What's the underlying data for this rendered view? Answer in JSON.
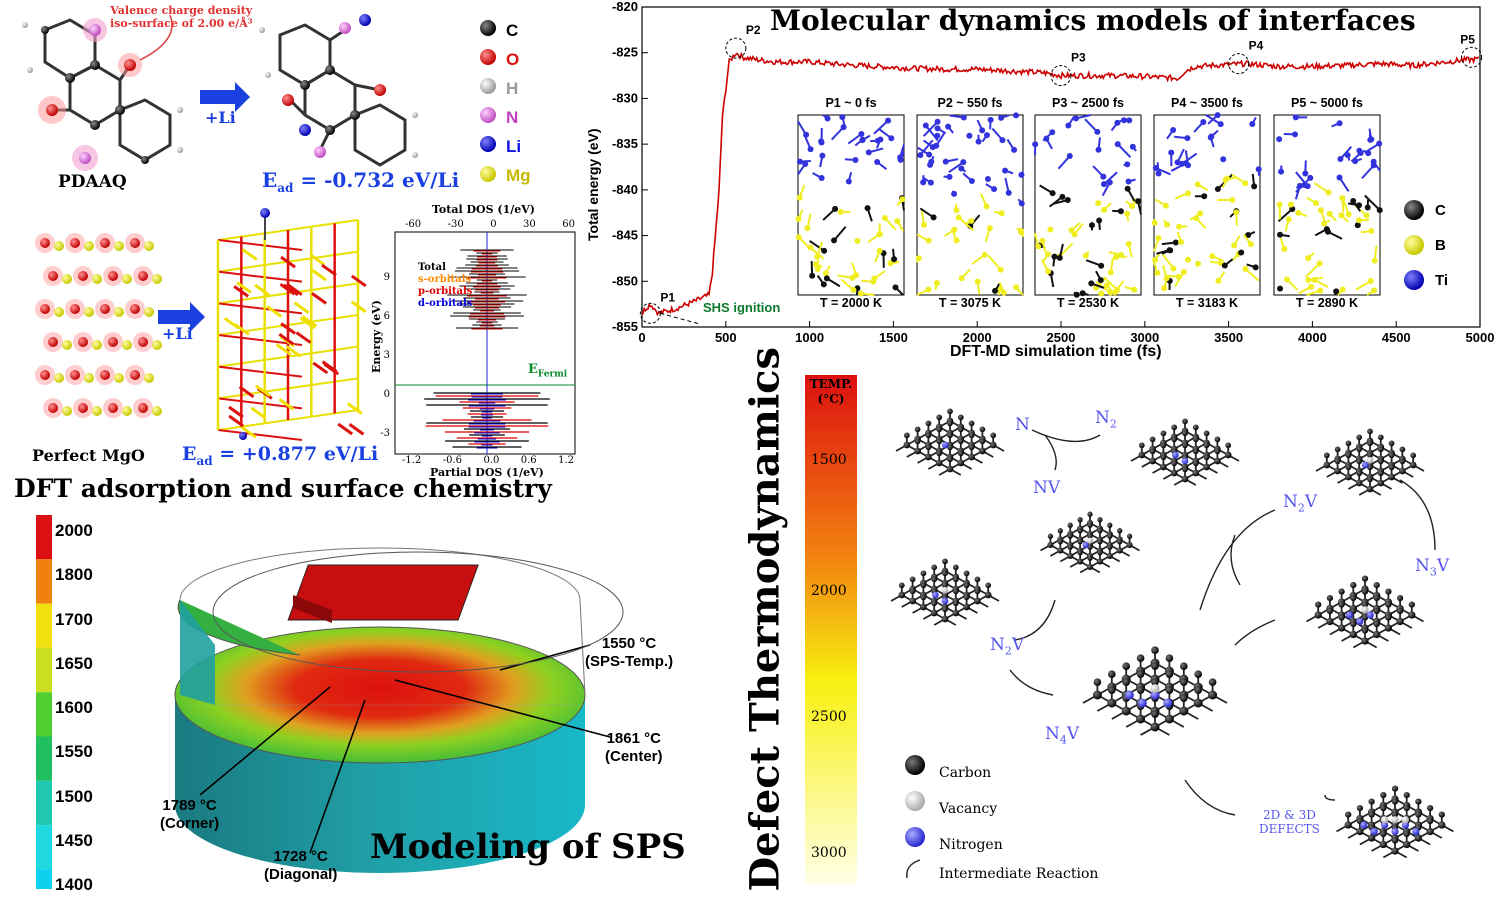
{
  "dft": {
    "title": "DFT adsorption and surface chemistry",
    "valence_note_line1": "Valence charge density",
    "valence_note_line2": "iso-surface of 2.00 e/Å³",
    "molecule_label": "PDAAQ",
    "plus_li_1": "+Li",
    "plus_li_2": "+Li",
    "ead1": "E",
    "ead1_sub": "ad",
    "ead1_val": " = -0.732 eV/Li",
    "ead2": "E",
    "ead2_sub": "ad",
    "ead2_val": " = +0.877 eV/Li",
    "mgo_label": "Perfect MgO",
    "legend": [
      {
        "label": "C",
        "color": "#000000"
      },
      {
        "label": "O",
        "color": "#e01010"
      },
      {
        "label": "H",
        "color": "#bbbbbb"
      },
      {
        "label": "N",
        "color": "#e070e0"
      },
      {
        "label": "Li",
        "color": "#1010e0"
      },
      {
        "label": "Mg",
        "color": "#e8e800"
      }
    ],
    "dos": {
      "top_title": "Total DOS (1/eV)",
      "top_ticks": [
        "-60",
        "-30",
        "0",
        "30",
        "60"
      ],
      "y_label": "Energy (eV)",
      "y_ticks": [
        "9",
        "6",
        "3",
        "0",
        "-3"
      ],
      "bottom_ticks": [
        "-1.2",
        "-0.6",
        "0.0",
        "0.6",
        "1.2"
      ],
      "bottom_title": "Partial DOS (1/eV)",
      "legend": [
        {
          "label": "Total",
          "color": "#000000"
        },
        {
          "label": "s-orbitals",
          "color": "#ff8c00"
        },
        {
          "label": "p-orbitals",
          "color": "#e00000"
        },
        {
          "label": "d-orbitals",
          "color": "#0000dd"
        }
      ],
      "fermi": "E",
      "fermi_sub": "Fermi"
    }
  },
  "md": {
    "title": "Molecular dynamics models of interfaces",
    "chart_data": {
      "type": "line",
      "xlabel": "DFT-MD simulation time (fs)",
      "ylabel": "Total energy (eV)",
      "xlim": [
        0,
        5000
      ],
      "ylim": [
        -855,
        -820
      ],
      "x_ticks": [
        0,
        500,
        1000,
        1500,
        2000,
        2500,
        3000,
        3500,
        4000,
        4500,
        5000
      ],
      "y_ticks": [
        -820,
        -825,
        -830,
        -835,
        -840,
        -845,
        -850,
        -855
      ],
      "series": [
        {
          "color": "#cc0000",
          "x": [
            0,
            20,
            50,
            100,
            200,
            300,
            400,
            420,
            460,
            480,
            500,
            520,
            560,
            600,
            700,
            800,
            1000,
            1200,
            1400,
            1600,
            1800,
            2000,
            2200,
            2400,
            2500,
            2800,
            3000,
            3200,
            3240,
            3300,
            3500,
            3600,
            3800,
            4000,
            4200,
            4400,
            4600,
            4800,
            4900,
            5000
          ],
          "y": [
            -853.5,
            -853,
            -852.5,
            -853.5,
            -853,
            -852.3,
            -851.5,
            -849,
            -840,
            -832,
            -829,
            -826,
            -825,
            -825.5,
            -825.8,
            -826,
            -826,
            -826.3,
            -826.5,
            -826.7,
            -826.8,
            -826.8,
            -827,
            -827.2,
            -827.5,
            -827.5,
            -827.6,
            -827.8,
            -827,
            -826.5,
            -826.3,
            -826.2,
            -826.5,
            -826.5,
            -826.4,
            -826.2,
            -826.4,
            -826.0,
            -825.8,
            -825.7
          ]
        }
      ],
      "points": [
        {
          "label": "P1",
          "x": 50,
          "y": -853.5
        },
        {
          "label": "P2",
          "x": 560,
          "y": -824.5
        },
        {
          "label": "P3",
          "x": 2500,
          "y": -827.5
        },
        {
          "label": "P4",
          "x": 3560,
          "y": -826.2
        },
        {
          "label": "P5",
          "x": 4950,
          "y": -825.5
        }
      ],
      "annotation": "SHS ignition"
    },
    "snapshots": [
      {
        "title": "P1 ~ 0 fs",
        "temp": "T = 2000 K"
      },
      {
        "title": "P2 ~ 550 fs",
        "temp": "T = 3075 K"
      },
      {
        "title": "P3 ~ 2500 fs",
        "temp": "T = 2530 K"
      },
      {
        "title": "P4 ~ 3500 fs",
        "temp": "T = 3183 K"
      },
      {
        "title": "P5 ~ 5000 fs",
        "temp": "T = 2890 K"
      }
    ],
    "legend": [
      {
        "label": "C",
        "color": "#000000"
      },
      {
        "label": "B",
        "color": "#eeee22"
      },
      {
        "label": "Ti",
        "color": "#3333dd"
      }
    ]
  },
  "sps": {
    "title": "Modeling of SPS",
    "scale": [
      "2000",
      "1800",
      "1700",
      "1650",
      "1600",
      "1550",
      "1500",
      "1450",
      "1400"
    ],
    "scale_colors": [
      "#dd1111",
      "#f08010",
      "#f0e010",
      "#c8e020",
      "#50d030",
      "#20c060",
      "#20c8b0",
      "#20d8e0",
      "#10d0f0"
    ],
    "ann": [
      {
        "line1": "1550 °C",
        "line2": "(SPS-Temp.)"
      },
      {
        "line1": "1861 °C",
        "line2": "(Center)"
      },
      {
        "line1": "1789 °C",
        "line2": "(Corner)"
      },
      {
        "line1": "1728 °C",
        "line2": "(Diagonal)"
      }
    ]
  },
  "defect": {
    "title": "Defect Thermodynamics",
    "temp_label_line1": "TEMP.",
    "temp_label_line2": "(°C)",
    "temp_ticks": [
      "1500",
      "2000",
      "2500",
      "3000"
    ],
    "species": [
      "N",
      "N",
      "NV",
      "N",
      "V",
      "N",
      "V",
      "N",
      "V",
      "N",
      "V"
    ],
    "labels": {
      "n": "N",
      "n2": "N",
      "n2_sub": "2",
      "nv": "NV",
      "n2v_a": "N",
      "n2v_a_sub": "2",
      "n2v_a_v": "V",
      "n3v": "N",
      "n3v_sub": "3",
      "n3v_v": "V",
      "n2v_b": "N",
      "n2v_b_sub": "2",
      "n2v_b_v": "V",
      "n4v": "N",
      "n4v_sub": "4",
      "n4v_v": "V",
      "defects_line1": "2D & 3D",
      "defects_line2": "DEFECTS"
    },
    "legend": [
      {
        "label": "Carbon",
        "color": "#000000"
      },
      {
        "label": "Vacancy",
        "color": "#dddddd"
      },
      {
        "label": "Nitrogen",
        "color": "#4444ee"
      },
      {
        "label": "Intermediate Reaction",
        "color": "none"
      }
    ]
  }
}
